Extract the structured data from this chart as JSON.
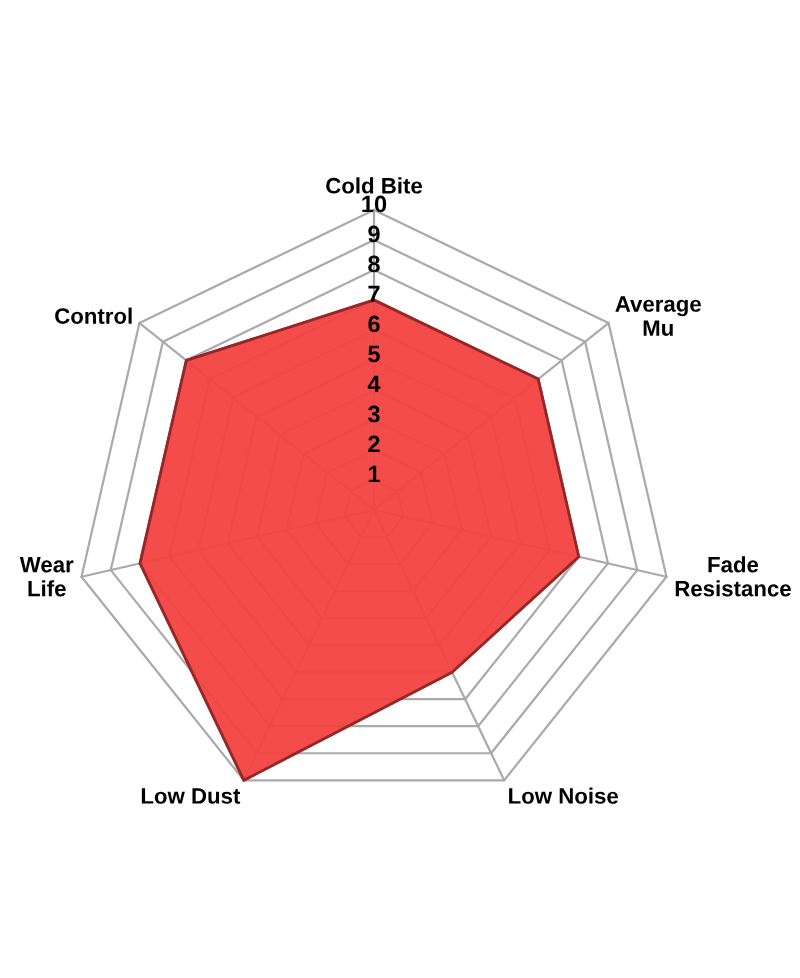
{
  "chart_data": {
    "type": "radar",
    "categories": [
      "Cold Bite",
      "Average\nMu",
      "Fade\nResistance",
      "Low Noise",
      "Low Dust",
      "Wear\nLife",
      "Control"
    ],
    "series": [
      {
        "color": "#f44242",
        "values": [
          7,
          7,
          7,
          6,
          10,
          8,
          8
        ]
      }
    ],
    "ylim": [
      0,
      10
    ],
    "yticks": [
      1,
      2,
      3,
      4,
      5,
      6,
      7,
      8,
      9,
      10
    ],
    "grid": true
  }
}
